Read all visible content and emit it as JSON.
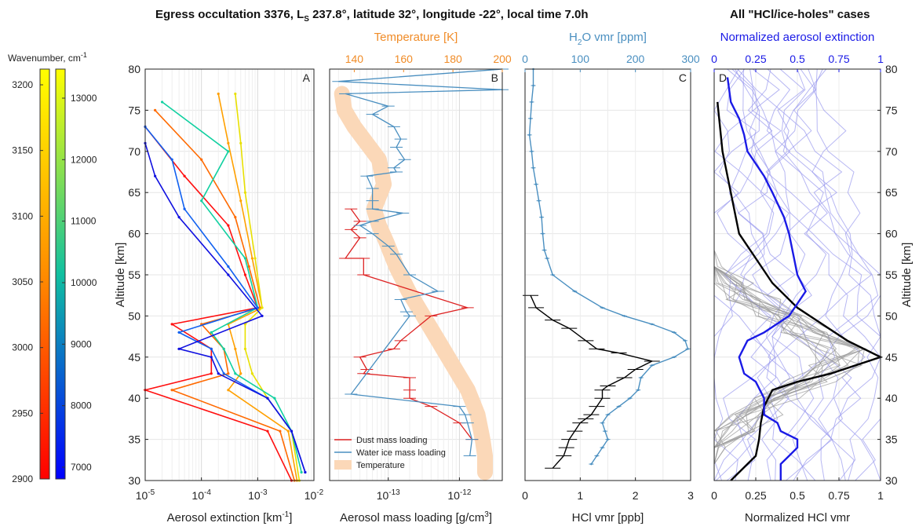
{
  "figure": {
    "title_left_prefix": "Egress occultation 3376, L",
    "title_left_sub": "S",
    "title_left_suffix": " 237.8°, latitude 32°, longitude -22°, local time 7.0h",
    "title_right": "All \"HCl/ice-holes\" cases"
  },
  "colors": {
    "orange": "#f08c28",
    "steel": "#4a8fc0",
    "blue": "#1a1ae6",
    "red": "#dd2222",
    "peach": "#fbd8b8",
    "black": "#000000",
    "gray": "#999999",
    "lightblue": "#9999ee"
  },
  "colorbars": {
    "label": "Wavenumber, cm",
    "label_sup": "-1",
    "left_ticks": [
      "3200",
      "3150",
      "3100",
      "3050",
      "3000",
      "2950",
      "2900"
    ],
    "right_ticks": [
      "13000",
      "12000",
      "11000",
      "10000",
      "9000",
      "8000",
      "7000"
    ]
  },
  "chart_data": [
    {
      "type": "line",
      "panel": "A",
      "xlabel": "Aerosol extinction [km",
      "xlabel_sup": "-1",
      "xlabel_end": "]",
      "ylabel": "Altitude [km]",
      "xscale": "log",
      "xlim": [
        1e-05,
        0.01
      ],
      "ylim": [
        30,
        80
      ],
      "xticks": [
        {
          "base": "10",
          "exp": "-5"
        },
        {
          "base": "10",
          "exp": "-4"
        },
        {
          "base": "10",
          "exp": "-3"
        },
        {
          "base": "10",
          "exp": "-2"
        }
      ],
      "yticks": [
        "30",
        "35",
        "40",
        "45",
        "50",
        "55",
        "60",
        "65",
        "70",
        "75",
        "80"
      ],
      "grid": true,
      "series": [
        {
          "color": "#ff1010",
          "x": [
            6e-06,
            5e-05,
            0.0003,
            0.0006,
            0.001,
            3e-05,
            0.00015,
            0.00015,
            1e-05,
            0.0015,
            0.004
          ],
          "y": [
            73,
            67,
            61,
            55,
            51,
            49,
            46,
            43,
            41,
            36,
            30
          ]
        },
        {
          "color": "#ff6a00",
          "x": [
            1.5e-05,
            0.0001,
            0.0004,
            0.0007,
            0.0011,
            0.0001,
            0.00025,
            0.0003,
            3e-05,
            0.0025,
            0.0045
          ],
          "y": [
            75,
            69,
            62,
            56,
            51,
            49,
            46,
            43,
            41,
            36,
            30
          ]
        },
        {
          "color": "#ffa000",
          "x": [
            0.0002,
            0.0003,
            0.0005,
            0.0008,
            0.0012,
            0.0003,
            0.0004,
            0.0005,
            0.0003,
            0.0035,
            0.005
          ],
          "y": [
            77,
            71,
            64,
            57,
            51,
            49,
            46,
            43,
            41,
            36,
            30
          ]
        },
        {
          "color": "#e8e000",
          "x": [
            0.0004,
            0.0005,
            0.0006,
            0.0009,
            0.0012,
            0.0006,
            0.0006,
            0.0008,
            0.0015,
            0.004,
            0.0055
          ],
          "y": [
            77,
            71,
            65,
            57,
            51,
            49,
            46,
            43,
            40,
            36,
            30
          ]
        },
        {
          "color": "#10d0a0",
          "x": [
            2e-05,
            0.0003,
            0.0001,
            0.0006,
            0.001,
            0.00015,
            0.00025,
            0.0004,
            0.002,
            0.004,
            0.006
          ],
          "y": [
            76,
            70,
            64,
            57,
            51,
            48,
            46,
            43,
            40,
            36,
            31
          ]
        },
        {
          "color": "#1060f0",
          "x": [
            8e-06,
            3e-05,
            5e-05,
            0.0003,
            0.001,
            4e-05,
            0.00015,
            0.00025,
            0.0015,
            0.004,
            0.007
          ],
          "y": [
            73,
            69,
            63,
            56,
            51,
            48,
            46,
            43,
            40,
            36,
            31
          ]
        },
        {
          "color": "#1010e0",
          "x": [
            5e-06,
            1.5e-05,
            4e-05,
            0.0003,
            0.0012,
            4e-05,
            0.00015,
            0.0002,
            0.0015,
            0.004,
            0.007
          ],
          "y": [
            71,
            67,
            62,
            55,
            50,
            46,
            45,
            43,
            40,
            36,
            31
          ]
        }
      ]
    },
    {
      "type": "line",
      "panel": "B",
      "xlabel": "Aerosol mass loading [g/cm",
      "xlabel_sup": "3",
      "xlabel_end": "]",
      "top_xlabel": "Temperature [K]",
      "xscale": "log",
      "xlim": [
        1.5e-14,
        4e-12
      ],
      "ylim": [
        30,
        80
      ],
      "xticks": [
        {
          "base": "10",
          "exp": "-13",
          "value": 1e-13
        },
        {
          "base": "10",
          "exp": "-12",
          "value": 1e-12
        }
      ],
      "top_xlim": [
        130,
        200
      ],
      "top_xticks": [
        "140",
        "160",
        "180",
        "200"
      ],
      "legend": {
        "placement": "bottom-left",
        "entries": [
          "Dust mass loading",
          "Water ice mass loading",
          "Temperature"
        ]
      },
      "series": [
        {
          "name": "Dust mass loading",
          "color": "#dd2222",
          "x": [
            3e-14,
            4e-14,
            3e-14,
            4e-14,
            2.5e-14,
            4.5e-14,
            4.5e-14,
            1.3e-12,
            4e-13,
            1.5e-13,
            1.2e-13,
            4e-14,
            5e-14,
            4.5e-14,
            2e-13,
            2e-13,
            2e-13,
            4e-13,
            1e-12,
            1.5e-12
          ],
          "y": [
            63,
            61.5,
            60.5,
            59.5,
            57,
            57,
            55,
            51,
            50,
            47,
            46,
            45,
            43.5,
            43,
            42.5,
            41,
            40,
            39,
            37,
            35
          ]
        },
        {
          "name": "Water ice mass loading",
          "color": "#4a8fc0",
          "x": [
            4e-12,
            2e-14,
            4e-12,
            2.5e-14,
            1e-13,
            6e-14,
            1.2e-13,
            1.5e-13,
            1.3e-13,
            1.7e-13,
            1.2e-13,
            1.3e-13,
            5e-14,
            6e-14,
            6e-14,
            6e-14,
            1.6e-13,
            6e-14,
            4e-14,
            6e-14,
            1e-13,
            1.3e-13,
            2e-13,
            5e-13,
            1.5e-13,
            1.8e-13,
            2e-13,
            3e-14,
            1e-12,
            1.2e-12,
            1.3e-12,
            1.5e-12,
            1.4e-12
          ],
          "y": [
            80,
            78.5,
            77.5,
            77,
            75.5,
            74.5,
            73,
            71.5,
            70.5,
            69,
            68,
            67.5,
            67,
            65.5,
            64,
            63,
            62.5,
            61.5,
            61,
            60,
            58.5,
            57.5,
            55,
            53,
            52,
            50.5,
            50,
            40.5,
            39,
            38,
            37,
            35,
            33
          ]
        },
        {
          "name": "Temperature",
          "color": "#fbd8b8",
          "temperature": [
            135,
            136,
            140,
            145,
            150,
            152,
            148,
            150,
            153,
            157,
            162,
            168,
            174,
            180,
            186,
            190,
            192,
            193,
            193
          ],
          "y": [
            77,
            75,
            73,
            71,
            69,
            66,
            63,
            61,
            59,
            56,
            53,
            50,
            47,
            44,
            41,
            38,
            35,
            33,
            31
          ]
        }
      ]
    },
    {
      "type": "line",
      "panel": "C",
      "xlabel": "HCl vmr [ppb]",
      "top_xlabel_pre": "H",
      "top_xlabel_sub": "2",
      "top_xlabel_post": "O vmr [ppm]",
      "xlim": [
        0,
        3
      ],
      "ylim": [
        30,
        80
      ],
      "xticks": [
        "0",
        "1",
        "2",
        "3"
      ],
      "top_xlim": [
        0,
        300
      ],
      "top_xticks": [
        "0",
        "100",
        "200",
        "300"
      ],
      "series": [
        {
          "name": "HCl",
          "color": "#000000",
          "x": [
            0.1,
            0.2,
            0.5,
            0.8,
            1.1,
            1.3,
            1.7,
            2.3,
            2.0,
            1.8,
            1.5,
            1.4,
            1.4,
            1.3,
            1.2,
            1.1,
            1.0,
            0.9,
            0.8,
            0.75,
            0.7,
            0.5
          ],
          "y": [
            52.5,
            51,
            49.5,
            48.5,
            47,
            46,
            45.5,
            44.5,
            43.5,
            42.5,
            41.5,
            41,
            40,
            39,
            38,
            37.5,
            37,
            36,
            35,
            34,
            33,
            31.5
          ]
        },
        {
          "name": "H2O",
          "color": "#4a8fc0",
          "h2o": [
            15,
            15,
            12,
            10,
            8,
            12,
            15,
            20,
            25,
            30,
            32,
            35,
            40,
            50,
            90,
            140,
            180,
            230,
            270,
            290,
            295,
            270,
            230,
            210,
            205,
            190,
            170,
            150,
            140,
            145,
            150,
            140,
            130,
            120
          ],
          "y": [
            80,
            78,
            76,
            74,
            72,
            70,
            68,
            66,
            64,
            62,
            60,
            58,
            57,
            55,
            53,
            51,
            50,
            49,
            48,
            47,
            46,
            45,
            44,
            42.5,
            41,
            40,
            39,
            38,
            37,
            36,
            35,
            34,
            33,
            32
          ]
        }
      ]
    },
    {
      "type": "line",
      "panel": "D",
      "xlabel": "Normalized HCl vmr",
      "top_xlabel": "Normalized aerosol extinction",
      "ylabel": "Altitude [km]",
      "xlim": [
        0,
        1
      ],
      "ylim": [
        30,
        80
      ],
      "xticks": [
        "0",
        "0.25",
        "0.5",
        "0.75",
        "1"
      ],
      "top_xticks": [
        "0",
        "0.25",
        "0.5",
        "0.75",
        "1"
      ],
      "yticks": [
        "30",
        "35",
        "40",
        "45",
        "50",
        "55",
        "60",
        "65",
        "70",
        "75",
        "80"
      ],
      "series": [
        {
          "name": "mean normalized HCl",
          "color": "#000000",
          "x": [
            0.02,
            0.05,
            0.15,
            0.25,
            0.35,
            0.5,
            0.65,
            0.8,
            1.0,
            0.7,
            0.5,
            0.35,
            0.3,
            0.28,
            0.27,
            0.25,
            0.2,
            0.1
          ],
          "y": [
            76,
            70,
            60,
            57,
            54,
            51,
            49,
            47,
            45,
            43,
            42,
            41,
            39,
            37,
            35,
            33,
            32,
            30
          ]
        },
        {
          "name": "mean normalized aerosol extinction",
          "color": "#1a1ae6",
          "x": [
            0.08,
            0.1,
            0.15,
            0.18,
            0.2,
            0.3,
            0.35,
            0.42,
            0.45,
            0.48,
            0.5,
            0.55,
            0.45,
            0.3,
            0.2,
            0.15,
            0.18,
            0.25,
            0.3,
            0.3,
            0.38,
            0.4,
            0.5,
            0.5,
            0.45,
            0.4,
            0.4
          ],
          "y": [
            79,
            76,
            74,
            72,
            70,
            67,
            65,
            62,
            60,
            57,
            55,
            53,
            50,
            48,
            47,
            45,
            43,
            42,
            40,
            38,
            37,
            36,
            35,
            34,
            33,
            32,
            30
          ]
        }
      ]
    }
  ]
}
